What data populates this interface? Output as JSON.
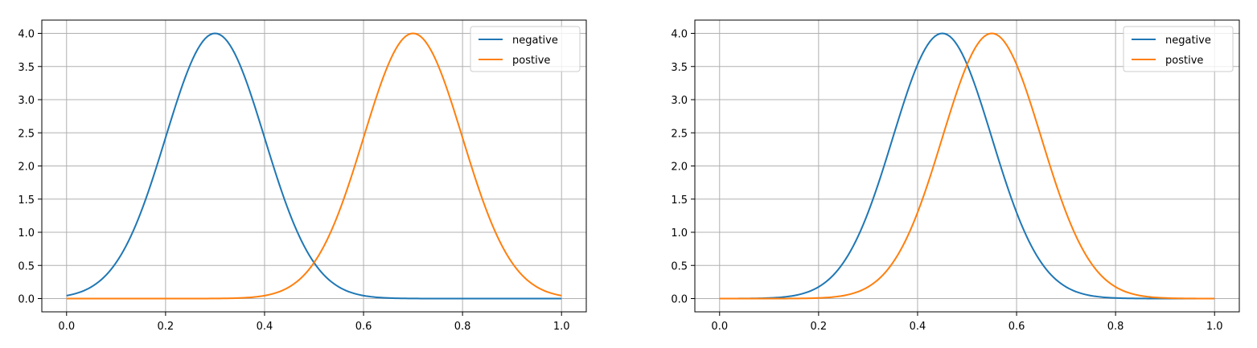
{
  "chart_data": [
    {
      "type": "line",
      "title": "",
      "xlabel": "",
      "ylabel": "",
      "xlim": [
        0.0,
        1.0
      ],
      "ylim": [
        0.0,
        4.0
      ],
      "xticks": [
        "0.0",
        "0.2",
        "0.4",
        "0.6",
        "0.8",
        "1.0"
      ],
      "yticks": [
        "0.0",
        "0.5",
        "1.0",
        "1.5",
        "2.0",
        "2.5",
        "3.0",
        "3.5",
        "4.0"
      ],
      "grid": true,
      "legend_position": "top-right",
      "series": [
        {
          "name": "negative",
          "color": "#1f77b4",
          "x": [
            0.0,
            0.05,
            0.1,
            0.15,
            0.2,
            0.25,
            0.3,
            0.35,
            0.4,
            0.45,
            0.5,
            0.55,
            0.6,
            0.65,
            0.7,
            0.75,
            0.8,
            0.85,
            0.9,
            0.95,
            1.0
          ],
          "y": [
            0.044,
            0.175,
            0.54,
            1.3,
            2.42,
            3.52,
            4.0,
            3.52,
            2.42,
            1.3,
            0.54,
            0.175,
            0.044,
            0.009,
            0.001,
            0.0,
            0.0,
            0.0,
            0.0,
            0.0,
            0.0
          ]
        },
        {
          "name": "postive",
          "color": "#ff7f0e",
          "x": [
            0.0,
            0.05,
            0.1,
            0.15,
            0.2,
            0.25,
            0.3,
            0.35,
            0.4,
            0.45,
            0.5,
            0.55,
            0.6,
            0.65,
            0.7,
            0.75,
            0.8,
            0.85,
            0.9,
            0.95,
            1.0
          ],
          "y": [
            0.0,
            0.0,
            0.0,
            0.0,
            0.0,
            0.0,
            0.001,
            0.009,
            0.044,
            0.175,
            0.54,
            1.3,
            2.42,
            3.52,
            4.0,
            3.52,
            2.42,
            1.3,
            0.54,
            0.175,
            0.044
          ]
        }
      ]
    },
    {
      "type": "line",
      "title": "",
      "xlabel": "",
      "ylabel": "",
      "xlim": [
        0.0,
        1.0
      ],
      "ylim": [
        0.0,
        4.0
      ],
      "xticks": [
        "0.0",
        "0.2",
        "0.4",
        "0.6",
        "0.8",
        "1.0"
      ],
      "yticks": [
        "0.0",
        "0.5",
        "1.0",
        "1.5",
        "2.0",
        "2.5",
        "3.0",
        "3.5",
        "4.0"
      ],
      "grid": true,
      "legend_position": "top-right",
      "series": [
        {
          "name": "negative",
          "color": "#1f77b4",
          "x": [
            0.0,
            0.05,
            0.1,
            0.15,
            0.2,
            0.25,
            0.3,
            0.35,
            0.4,
            0.45,
            0.5,
            0.55,
            0.6,
            0.65,
            0.7,
            0.75,
            0.8,
            0.85,
            0.9,
            0.95,
            1.0
          ],
          "y": [
            0.0,
            0.0,
            0.009,
            0.044,
            0.175,
            0.54,
            1.3,
            2.42,
            3.52,
            4.0,
            3.52,
            2.42,
            1.3,
            0.54,
            0.175,
            0.044,
            0.009,
            0.001,
            0.0,
            0.0,
            0.0
          ]
        },
        {
          "name": "postive",
          "color": "#ff7f0e",
          "x": [
            0.0,
            0.05,
            0.1,
            0.15,
            0.2,
            0.25,
            0.3,
            0.35,
            0.4,
            0.45,
            0.5,
            0.55,
            0.6,
            0.65,
            0.7,
            0.75,
            0.8,
            0.85,
            0.9,
            0.95,
            1.0
          ],
          "y": [
            0.0,
            0.0,
            0.0,
            0.001,
            0.009,
            0.044,
            0.175,
            0.54,
            1.3,
            2.42,
            3.52,
            4.0,
            3.52,
            2.42,
            1.3,
            0.54,
            0.175,
            0.044,
            0.009,
            0.0,
            0.0
          ]
        }
      ]
    }
  ]
}
